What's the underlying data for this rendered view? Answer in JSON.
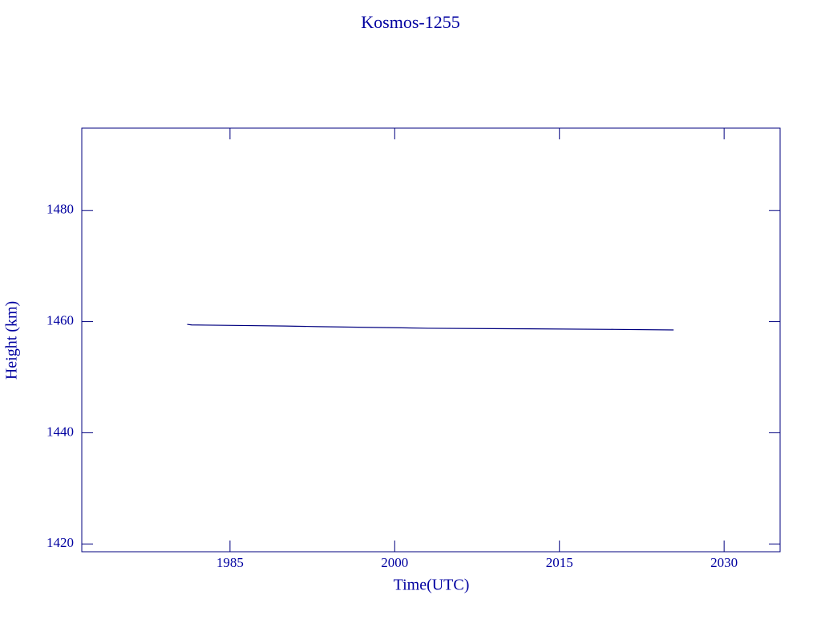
{
  "chart_data": {
    "type": "line",
    "title": "Kosmos-1255",
    "x_label": "Time(UTC)",
    "y_label": "Height (km)",
    "series": [
      {
        "name": "Kosmos-1255",
        "color": "#00007f",
        "x": [
          1981.1,
          1981.5,
          1986,
          1990,
          1993,
          1996,
          2000,
          2003,
          2012.3,
          2020,
          2025.4
        ],
        "values": [
          1459.5,
          1459.4,
          1459.3,
          1459.2,
          1459.1,
          1459.0,
          1458.9,
          1458.8,
          1458.7,
          1458.6,
          1458.5
        ]
      }
    ],
    "xlim": [
      1971.5,
      2035.1
    ],
    "xticks": [
      1985,
      2000,
      2015,
      2030
    ],
    "ylim": [
      1418.6,
      1494.8
    ],
    "yticks": [
      1420,
      1440,
      1460,
      1480
    ],
    "axis_color": "#00007f",
    "text_color": "#0000a0"
  }
}
